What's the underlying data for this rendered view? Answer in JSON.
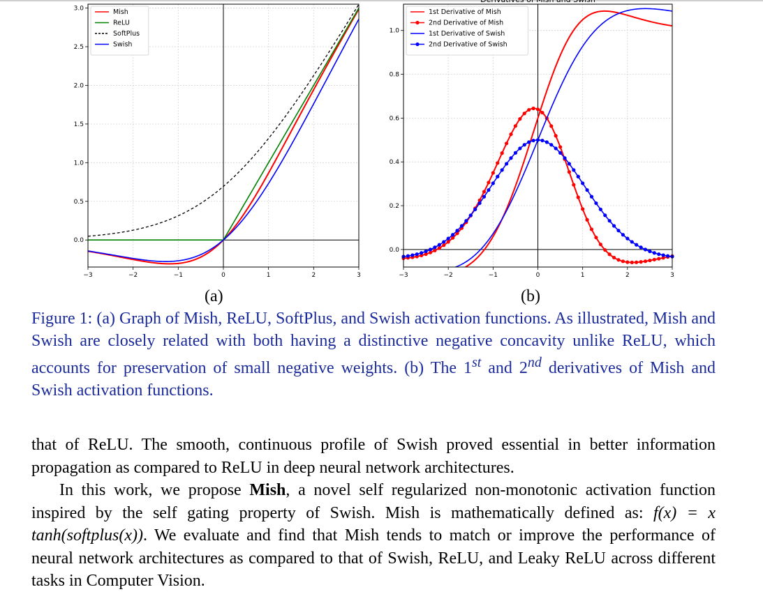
{
  "chart_data": [
    {
      "type": "line",
      "xlim": [
        -3,
        3
      ],
      "ylim": [
        -0.35,
        3.05
      ],
      "xticks": [
        "−3",
        "−2",
        "−1",
        "0",
        "1",
        "2",
        "3"
      ],
      "yticks": [
        "0.0",
        "0.5",
        "1.0",
        "1.5",
        "2.0",
        "2.5",
        "3.0"
      ],
      "ytick_values": [
        0,
        0.5,
        1.0,
        1.5,
        2.0,
        2.5,
        3.0
      ],
      "grid": true,
      "legend_position": "top-left",
      "series": [
        {
          "name": "Mish",
          "color": "#ff0000",
          "function": "mish"
        },
        {
          "name": "ReLU",
          "color": "#008000",
          "function": "relu"
        },
        {
          "name": "SoftPlus",
          "color": "#000000",
          "dashed": true,
          "function": "softplus"
        },
        {
          "name": "Swish",
          "color": "#0000ff",
          "function": "swish"
        }
      ],
      "sample_points": {
        "x": [
          -3,
          -2,
          -1,
          0,
          1,
          2,
          3
        ],
        "Mish": [
          -0.146,
          -0.252,
          -0.303,
          0.0,
          0.865,
          1.944,
          2.987
        ],
        "ReLU": [
          0,
          0,
          0,
          0,
          1,
          2,
          3
        ],
        "SoftPlus": [
          0.049,
          0.127,
          0.313,
          0.693,
          1.313,
          2.127,
          3.049
        ],
        "Swish": [
          -0.142,
          -0.238,
          -0.269,
          0.0,
          0.731,
          1.762,
          2.858
        ]
      }
    },
    {
      "type": "line",
      "title": "Derivatives of Mish and Swish",
      "xlim": [
        -3,
        3
      ],
      "ylim": [
        -0.08,
        1.12
      ],
      "xticks": [
        "−3",
        "−2",
        "−1",
        "0",
        "1",
        "2",
        "3"
      ],
      "yticks": [
        "0.0",
        "0.2",
        "0.4",
        "0.6",
        "0.8",
        "1.0"
      ],
      "ytick_values": [
        0,
        0.2,
        0.4,
        0.6,
        0.8,
        1.0
      ],
      "grid": true,
      "legend_position": "top-left",
      "series": [
        {
          "name": "1st Derivative of Mish",
          "color": "#ff0000",
          "markers": false,
          "function": "mish_d1"
        },
        {
          "name": "2nd Derivative of Mish",
          "color": "#ff0000",
          "markers": true,
          "function": "mish_d2"
        },
        {
          "name": "1st Derivative of Swish",
          "color": "#0000ff",
          "markers": false,
          "function": "swish_d1"
        },
        {
          "name": "2nd Derivative of Swish",
          "color": "#0000ff",
          "markers": true,
          "function": "swish_d2"
        }
      ],
      "sample_points": {
        "x": [
          -3,
          -2,
          -1,
          0,
          1,
          2,
          3
        ],
        "1st Derivative of Mish": [
          -0.1,
          -0.06,
          0.19,
          0.6,
          1.05,
          1.09,
          1.03
        ],
        "2nd Derivative of Mish": [
          -0.03,
          0.08,
          0.4,
          0.56,
          0.23,
          -0.03,
          -0.02
        ],
        "1st Derivative of Swish": [
          -0.09,
          -0.09,
          0.07,
          0.5,
          0.93,
          1.09,
          1.09
        ],
        "2nd Derivative of Swish": [
          -0.04,
          0.05,
          0.29,
          0.5,
          0.29,
          0.05,
          -0.04
        ]
      }
    }
  ],
  "figure": {
    "sub_a": "(a)",
    "sub_b": "(b)",
    "caption_part1": "Figure 1: (a) Graph of Mish, ReLU, SoftPlus, and Swish activation functions. As illustrated, Mish and Swish are closely related with both having a distinctive negative concavity unlike ReLU, which accounts for preservation of small negative weights. (b) The 1",
    "caption_sup1": "st",
    "caption_part2": " and 2",
    "caption_sup2": "nd",
    "caption_part3": " derivatives of Mish and Swish activation functions."
  },
  "body": {
    "p1": "that of ReLU. The smooth, continuous profile of Swish proved essential in better information propagation as compared to ReLU in deep neural network architectures.",
    "p2_before": "In this work, we propose ",
    "p2_bold": "Mish",
    "p2_after": ", a novel self regularized non-monotonic activation function inspired by the self gating property of Swish. Mish is mathematically defined as: ",
    "p2_math": "f(x) = x tanh(softplus(x))",
    "p2_end": ". We evaluate and find that Mish tends to match or improve the performance of neural network architectures as compared to that of Swish, ReLU, and Leaky ReLU across different tasks in Computer Vision."
  }
}
